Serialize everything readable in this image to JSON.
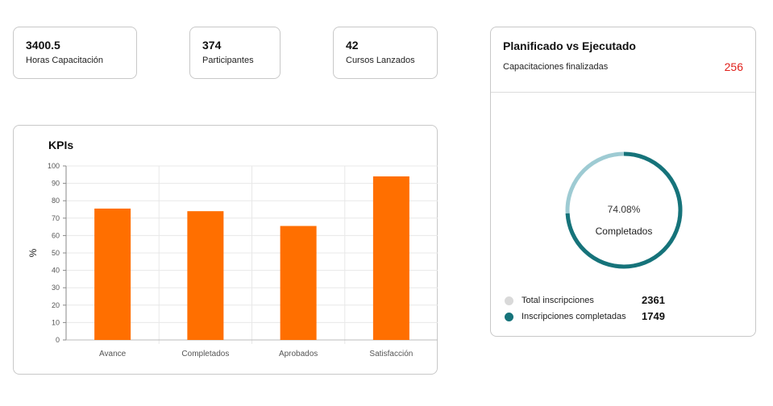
{
  "stats": [
    {
      "value": "3400.5",
      "label": "Horas Capacitación"
    },
    {
      "value": "374",
      "label": "Participantes"
    },
    {
      "value": "42",
      "label": "Cursos Lanzados"
    }
  ],
  "kpis": {
    "title": "KPIs",
    "chart_data": {
      "type": "bar",
      "categories": [
        "Avance",
        "Completados",
        "Aprobados",
        "Satisfacción"
      ],
      "values": [
        75.5,
        74,
        65.5,
        94
      ],
      "ylabel": "%",
      "ylim": [
        0,
        100
      ],
      "yticks": [
        "0",
        "10",
        "20",
        "30",
        "40",
        "50",
        "60",
        "70",
        "80",
        "90",
        "100"
      ],
      "grid": true,
      "bar_color": "#ff6f00"
    }
  },
  "plan": {
    "title": "Planificado vs Ejecutado",
    "subtitle": "Capacitaciones finalizadas",
    "count": "256",
    "count_color": "#e0201b",
    "donut": {
      "percent_label": "74.08%",
      "center_label": "Completados",
      "completed_fraction": 0.7408,
      "completed_color": "#16737a",
      "remaining_color": "#9ecbd3"
    },
    "legend": [
      {
        "label": "Total inscripciones",
        "value": "2361",
        "color": "#d9d9d9"
      },
      {
        "label": "Inscripciones completadas",
        "value": "1749",
        "color": "#16737a"
      }
    ]
  }
}
